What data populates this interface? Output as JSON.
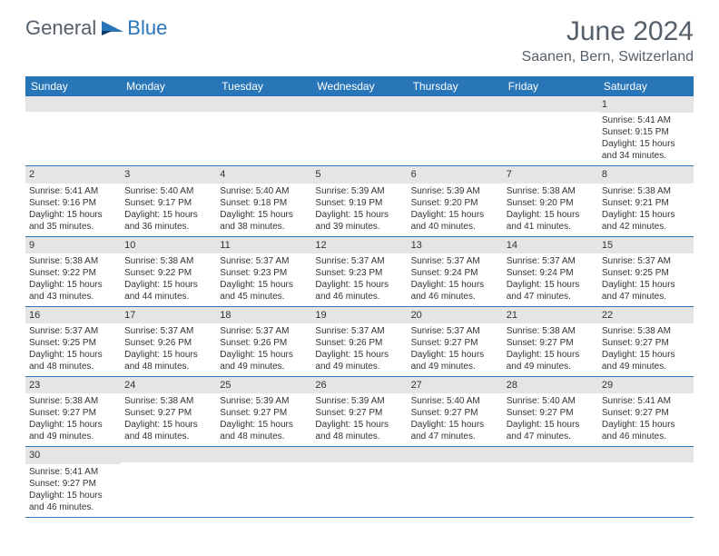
{
  "logo": {
    "text1": "General",
    "text2": "Blue"
  },
  "title": "June 2024",
  "location": "Saanen, Bern, Switzerland",
  "colors": {
    "header_bg": "#2876b8",
    "header_text": "#ffffff",
    "daynum_bg": "#e5e5e5",
    "text": "#333333",
    "title_text": "#55606a",
    "row_border": "#2876b8"
  },
  "weekdays": [
    "Sunday",
    "Monday",
    "Tuesday",
    "Wednesday",
    "Thursday",
    "Friday",
    "Saturday"
  ],
  "weeks": [
    [
      null,
      null,
      null,
      null,
      null,
      null,
      {
        "n": "1",
        "sunrise": "Sunrise: 5:41 AM",
        "sunset": "Sunset: 9:15 PM",
        "daylight": "Daylight: 15 hours and 34 minutes."
      }
    ],
    [
      {
        "n": "2",
        "sunrise": "Sunrise: 5:41 AM",
        "sunset": "Sunset: 9:16 PM",
        "daylight": "Daylight: 15 hours and 35 minutes."
      },
      {
        "n": "3",
        "sunrise": "Sunrise: 5:40 AM",
        "sunset": "Sunset: 9:17 PM",
        "daylight": "Daylight: 15 hours and 36 minutes."
      },
      {
        "n": "4",
        "sunrise": "Sunrise: 5:40 AM",
        "sunset": "Sunset: 9:18 PM",
        "daylight": "Daylight: 15 hours and 38 minutes."
      },
      {
        "n": "5",
        "sunrise": "Sunrise: 5:39 AM",
        "sunset": "Sunset: 9:19 PM",
        "daylight": "Daylight: 15 hours and 39 minutes."
      },
      {
        "n": "6",
        "sunrise": "Sunrise: 5:39 AM",
        "sunset": "Sunset: 9:20 PM",
        "daylight": "Daylight: 15 hours and 40 minutes."
      },
      {
        "n": "7",
        "sunrise": "Sunrise: 5:38 AM",
        "sunset": "Sunset: 9:20 PM",
        "daylight": "Daylight: 15 hours and 41 minutes."
      },
      {
        "n": "8",
        "sunrise": "Sunrise: 5:38 AM",
        "sunset": "Sunset: 9:21 PM",
        "daylight": "Daylight: 15 hours and 42 minutes."
      }
    ],
    [
      {
        "n": "9",
        "sunrise": "Sunrise: 5:38 AM",
        "sunset": "Sunset: 9:22 PM",
        "daylight": "Daylight: 15 hours and 43 minutes."
      },
      {
        "n": "10",
        "sunrise": "Sunrise: 5:38 AM",
        "sunset": "Sunset: 9:22 PM",
        "daylight": "Daylight: 15 hours and 44 minutes."
      },
      {
        "n": "11",
        "sunrise": "Sunrise: 5:37 AM",
        "sunset": "Sunset: 9:23 PM",
        "daylight": "Daylight: 15 hours and 45 minutes."
      },
      {
        "n": "12",
        "sunrise": "Sunrise: 5:37 AM",
        "sunset": "Sunset: 9:23 PM",
        "daylight": "Daylight: 15 hours and 46 minutes."
      },
      {
        "n": "13",
        "sunrise": "Sunrise: 5:37 AM",
        "sunset": "Sunset: 9:24 PM",
        "daylight": "Daylight: 15 hours and 46 minutes."
      },
      {
        "n": "14",
        "sunrise": "Sunrise: 5:37 AM",
        "sunset": "Sunset: 9:24 PM",
        "daylight": "Daylight: 15 hours and 47 minutes."
      },
      {
        "n": "15",
        "sunrise": "Sunrise: 5:37 AM",
        "sunset": "Sunset: 9:25 PM",
        "daylight": "Daylight: 15 hours and 47 minutes."
      }
    ],
    [
      {
        "n": "16",
        "sunrise": "Sunrise: 5:37 AM",
        "sunset": "Sunset: 9:25 PM",
        "daylight": "Daylight: 15 hours and 48 minutes."
      },
      {
        "n": "17",
        "sunrise": "Sunrise: 5:37 AM",
        "sunset": "Sunset: 9:26 PM",
        "daylight": "Daylight: 15 hours and 48 minutes."
      },
      {
        "n": "18",
        "sunrise": "Sunrise: 5:37 AM",
        "sunset": "Sunset: 9:26 PM",
        "daylight": "Daylight: 15 hours and 49 minutes."
      },
      {
        "n": "19",
        "sunrise": "Sunrise: 5:37 AM",
        "sunset": "Sunset: 9:26 PM",
        "daylight": "Daylight: 15 hours and 49 minutes."
      },
      {
        "n": "20",
        "sunrise": "Sunrise: 5:37 AM",
        "sunset": "Sunset: 9:27 PM",
        "daylight": "Daylight: 15 hours and 49 minutes."
      },
      {
        "n": "21",
        "sunrise": "Sunrise: 5:38 AM",
        "sunset": "Sunset: 9:27 PM",
        "daylight": "Daylight: 15 hours and 49 minutes."
      },
      {
        "n": "22",
        "sunrise": "Sunrise: 5:38 AM",
        "sunset": "Sunset: 9:27 PM",
        "daylight": "Daylight: 15 hours and 49 minutes."
      }
    ],
    [
      {
        "n": "23",
        "sunrise": "Sunrise: 5:38 AM",
        "sunset": "Sunset: 9:27 PM",
        "daylight": "Daylight: 15 hours and 49 minutes."
      },
      {
        "n": "24",
        "sunrise": "Sunrise: 5:38 AM",
        "sunset": "Sunset: 9:27 PM",
        "daylight": "Daylight: 15 hours and 48 minutes."
      },
      {
        "n": "25",
        "sunrise": "Sunrise: 5:39 AM",
        "sunset": "Sunset: 9:27 PM",
        "daylight": "Daylight: 15 hours and 48 minutes."
      },
      {
        "n": "26",
        "sunrise": "Sunrise: 5:39 AM",
        "sunset": "Sunset: 9:27 PM",
        "daylight": "Daylight: 15 hours and 48 minutes."
      },
      {
        "n": "27",
        "sunrise": "Sunrise: 5:40 AM",
        "sunset": "Sunset: 9:27 PM",
        "daylight": "Daylight: 15 hours and 47 minutes."
      },
      {
        "n": "28",
        "sunrise": "Sunrise: 5:40 AM",
        "sunset": "Sunset: 9:27 PM",
        "daylight": "Daylight: 15 hours and 47 minutes."
      },
      {
        "n": "29",
        "sunrise": "Sunrise: 5:41 AM",
        "sunset": "Sunset: 9:27 PM",
        "daylight": "Daylight: 15 hours and 46 minutes."
      }
    ],
    [
      {
        "n": "30",
        "sunrise": "Sunrise: 5:41 AM",
        "sunset": "Sunset: 9:27 PM",
        "daylight": "Daylight: 15 hours and 46 minutes."
      },
      null,
      null,
      null,
      null,
      null,
      null
    ]
  ]
}
